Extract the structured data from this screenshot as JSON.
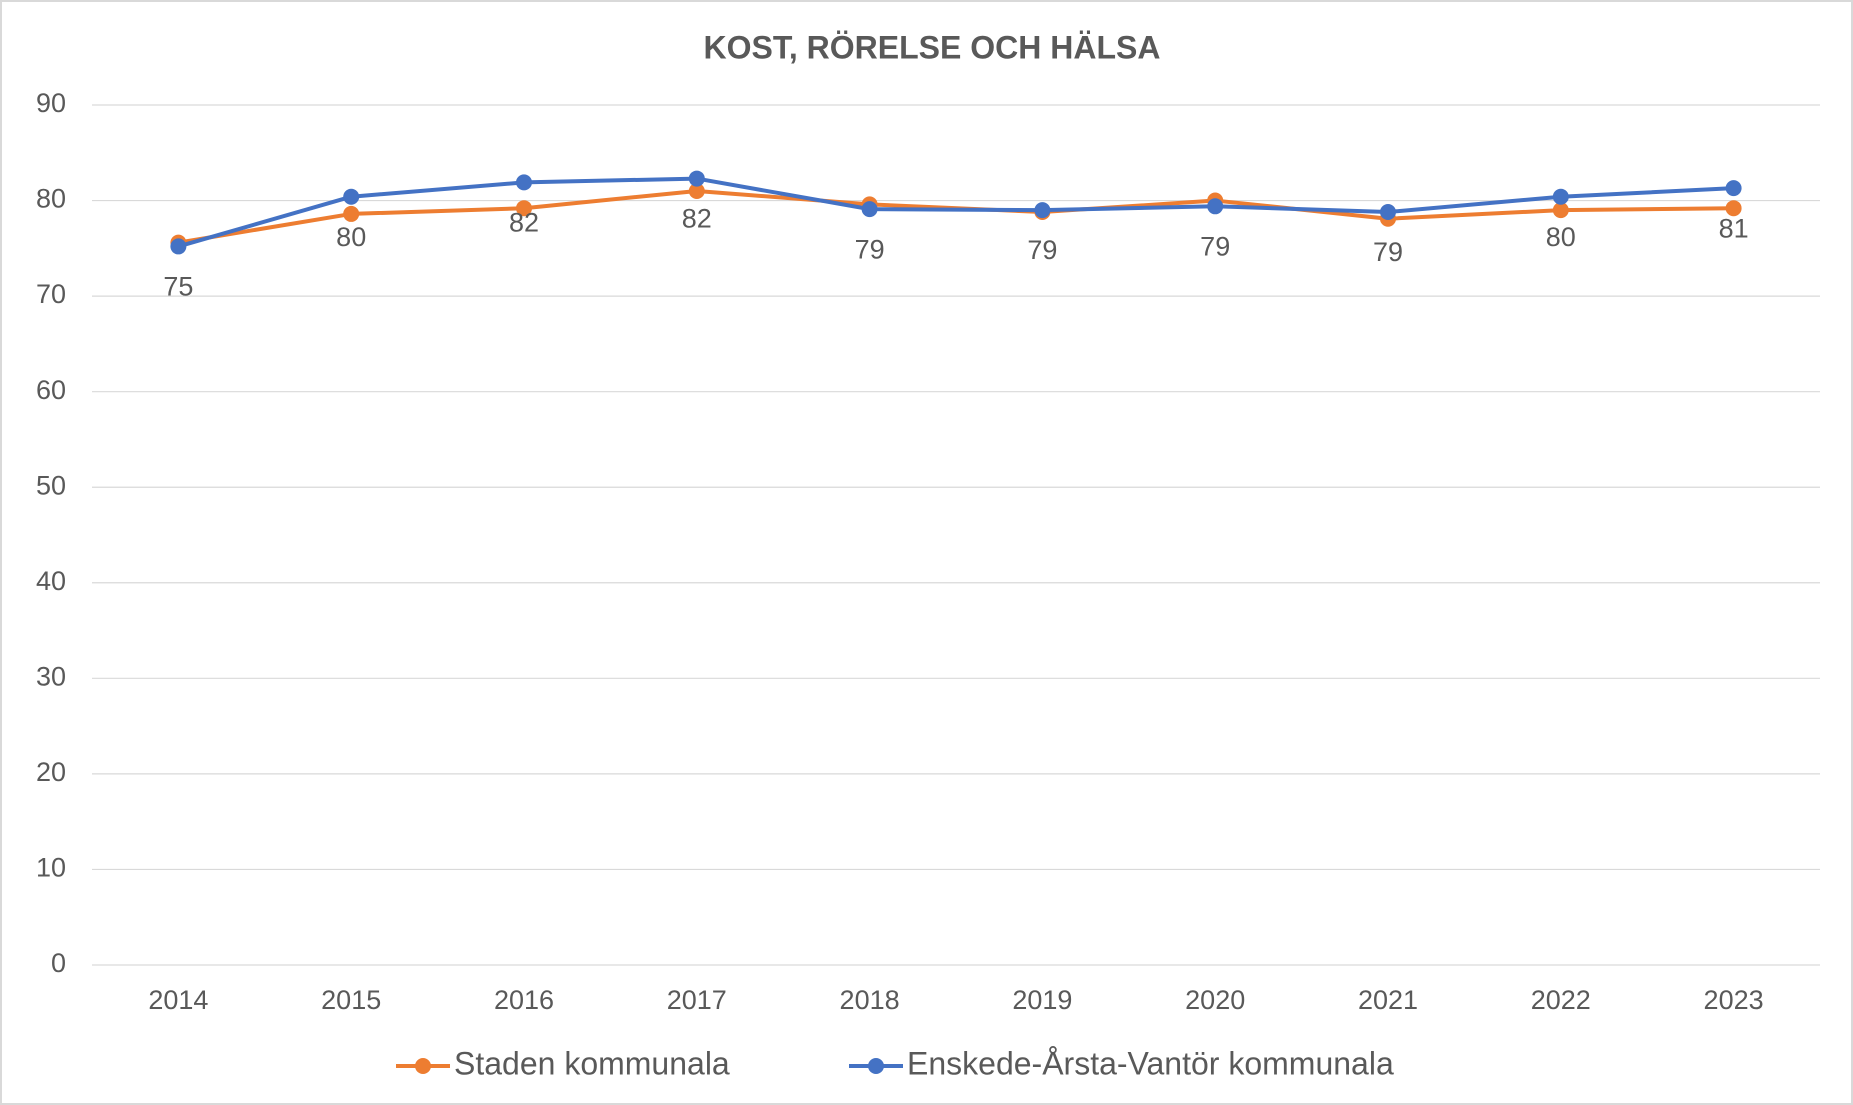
{
  "chart_data": {
    "type": "line",
    "title": "KOST, RÖRELSE OCH HÄLSA",
    "categories": [
      "2014",
      "2015",
      "2016",
      "2017",
      "2018",
      "2019",
      "2020",
      "2021",
      "2022",
      "2023"
    ],
    "series": [
      {
        "name": "Staden kommunala",
        "color": "#ed7d31",
        "values": [
          75.6,
          78.6,
          79.2,
          81.0,
          79.6,
          78.8,
          80.0,
          78.1,
          79.0,
          79.2
        ]
      },
      {
        "name": "Enskede-Årsta-Vantör kommunala",
        "color": "#4472c4",
        "values": [
          75.2,
          80.4,
          81.9,
          82.3,
          79.1,
          79.0,
          79.4,
          78.8,
          80.4,
          81.3
        ],
        "value_labels": [
          "75",
          "80",
          "82",
          "82",
          "79",
          "79",
          "79",
          "79",
          "80",
          "81"
        ]
      }
    ],
    "ylim": [
      0,
      90
    ],
    "yticks": [
      0,
      10,
      20,
      30,
      40,
      50,
      60,
      70,
      80,
      90
    ],
    "grid": true,
    "legend": "bottom"
  }
}
